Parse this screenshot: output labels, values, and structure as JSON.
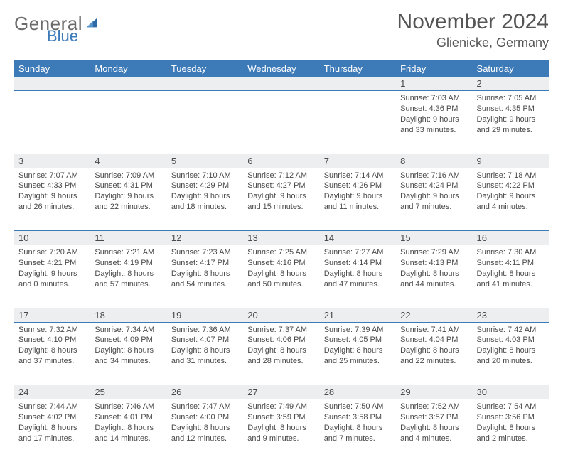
{
  "brand": {
    "word1": "General",
    "word2": "Blue",
    "word1_color": "#6b6b6b",
    "word2_color": "#3d7ab8",
    "sail_color": "#2f6aa8"
  },
  "header": {
    "title": "November 2024",
    "location": "Glienicke, Germany"
  },
  "style": {
    "header_bg": "#3d7ab8",
    "header_text": "#ffffff",
    "daynum_bg": "#eceeef",
    "row_divider": "#3d7ab8",
    "body_text": "#4a4a4a",
    "title_fontsize": 30,
    "location_fontsize": 18,
    "daytext_fontsize": 11
  },
  "weekdays": [
    "Sunday",
    "Monday",
    "Tuesday",
    "Wednesday",
    "Thursday",
    "Friday",
    "Saturday"
  ],
  "weeks": [
    [
      null,
      null,
      null,
      null,
      null,
      {
        "n": "1",
        "sunrise": "Sunrise: 7:03 AM",
        "sunset": "Sunset: 4:36 PM",
        "day1": "Daylight: 9 hours",
        "day2": "and 33 minutes."
      },
      {
        "n": "2",
        "sunrise": "Sunrise: 7:05 AM",
        "sunset": "Sunset: 4:35 PM",
        "day1": "Daylight: 9 hours",
        "day2": "and 29 minutes."
      }
    ],
    [
      {
        "n": "3",
        "sunrise": "Sunrise: 7:07 AM",
        "sunset": "Sunset: 4:33 PM",
        "day1": "Daylight: 9 hours",
        "day2": "and 26 minutes."
      },
      {
        "n": "4",
        "sunrise": "Sunrise: 7:09 AM",
        "sunset": "Sunset: 4:31 PM",
        "day1": "Daylight: 9 hours",
        "day2": "and 22 minutes."
      },
      {
        "n": "5",
        "sunrise": "Sunrise: 7:10 AM",
        "sunset": "Sunset: 4:29 PM",
        "day1": "Daylight: 9 hours",
        "day2": "and 18 minutes."
      },
      {
        "n": "6",
        "sunrise": "Sunrise: 7:12 AM",
        "sunset": "Sunset: 4:27 PM",
        "day1": "Daylight: 9 hours",
        "day2": "and 15 minutes."
      },
      {
        "n": "7",
        "sunrise": "Sunrise: 7:14 AM",
        "sunset": "Sunset: 4:26 PM",
        "day1": "Daylight: 9 hours",
        "day2": "and 11 minutes."
      },
      {
        "n": "8",
        "sunrise": "Sunrise: 7:16 AM",
        "sunset": "Sunset: 4:24 PM",
        "day1": "Daylight: 9 hours",
        "day2": "and 7 minutes."
      },
      {
        "n": "9",
        "sunrise": "Sunrise: 7:18 AM",
        "sunset": "Sunset: 4:22 PM",
        "day1": "Daylight: 9 hours",
        "day2": "and 4 minutes."
      }
    ],
    [
      {
        "n": "10",
        "sunrise": "Sunrise: 7:20 AM",
        "sunset": "Sunset: 4:21 PM",
        "day1": "Daylight: 9 hours",
        "day2": "and 0 minutes."
      },
      {
        "n": "11",
        "sunrise": "Sunrise: 7:21 AM",
        "sunset": "Sunset: 4:19 PM",
        "day1": "Daylight: 8 hours",
        "day2": "and 57 minutes."
      },
      {
        "n": "12",
        "sunrise": "Sunrise: 7:23 AM",
        "sunset": "Sunset: 4:17 PM",
        "day1": "Daylight: 8 hours",
        "day2": "and 54 minutes."
      },
      {
        "n": "13",
        "sunrise": "Sunrise: 7:25 AM",
        "sunset": "Sunset: 4:16 PM",
        "day1": "Daylight: 8 hours",
        "day2": "and 50 minutes."
      },
      {
        "n": "14",
        "sunrise": "Sunrise: 7:27 AM",
        "sunset": "Sunset: 4:14 PM",
        "day1": "Daylight: 8 hours",
        "day2": "and 47 minutes."
      },
      {
        "n": "15",
        "sunrise": "Sunrise: 7:29 AM",
        "sunset": "Sunset: 4:13 PM",
        "day1": "Daylight: 8 hours",
        "day2": "and 44 minutes."
      },
      {
        "n": "16",
        "sunrise": "Sunrise: 7:30 AM",
        "sunset": "Sunset: 4:11 PM",
        "day1": "Daylight: 8 hours",
        "day2": "and 41 minutes."
      }
    ],
    [
      {
        "n": "17",
        "sunrise": "Sunrise: 7:32 AM",
        "sunset": "Sunset: 4:10 PM",
        "day1": "Daylight: 8 hours",
        "day2": "and 37 minutes."
      },
      {
        "n": "18",
        "sunrise": "Sunrise: 7:34 AM",
        "sunset": "Sunset: 4:09 PM",
        "day1": "Daylight: 8 hours",
        "day2": "and 34 minutes."
      },
      {
        "n": "19",
        "sunrise": "Sunrise: 7:36 AM",
        "sunset": "Sunset: 4:07 PM",
        "day1": "Daylight: 8 hours",
        "day2": "and 31 minutes."
      },
      {
        "n": "20",
        "sunrise": "Sunrise: 7:37 AM",
        "sunset": "Sunset: 4:06 PM",
        "day1": "Daylight: 8 hours",
        "day2": "and 28 minutes."
      },
      {
        "n": "21",
        "sunrise": "Sunrise: 7:39 AM",
        "sunset": "Sunset: 4:05 PM",
        "day1": "Daylight: 8 hours",
        "day2": "and 25 minutes."
      },
      {
        "n": "22",
        "sunrise": "Sunrise: 7:41 AM",
        "sunset": "Sunset: 4:04 PM",
        "day1": "Daylight: 8 hours",
        "day2": "and 22 minutes."
      },
      {
        "n": "23",
        "sunrise": "Sunrise: 7:42 AM",
        "sunset": "Sunset: 4:03 PM",
        "day1": "Daylight: 8 hours",
        "day2": "and 20 minutes."
      }
    ],
    [
      {
        "n": "24",
        "sunrise": "Sunrise: 7:44 AM",
        "sunset": "Sunset: 4:02 PM",
        "day1": "Daylight: 8 hours",
        "day2": "and 17 minutes."
      },
      {
        "n": "25",
        "sunrise": "Sunrise: 7:46 AM",
        "sunset": "Sunset: 4:01 PM",
        "day1": "Daylight: 8 hours",
        "day2": "and 14 minutes."
      },
      {
        "n": "26",
        "sunrise": "Sunrise: 7:47 AM",
        "sunset": "Sunset: 4:00 PM",
        "day1": "Daylight: 8 hours",
        "day2": "and 12 minutes."
      },
      {
        "n": "27",
        "sunrise": "Sunrise: 7:49 AM",
        "sunset": "Sunset: 3:59 PM",
        "day1": "Daylight: 8 hours",
        "day2": "and 9 minutes."
      },
      {
        "n": "28",
        "sunrise": "Sunrise: 7:50 AM",
        "sunset": "Sunset: 3:58 PM",
        "day1": "Daylight: 8 hours",
        "day2": "and 7 minutes."
      },
      {
        "n": "29",
        "sunrise": "Sunrise: 7:52 AM",
        "sunset": "Sunset: 3:57 PM",
        "day1": "Daylight: 8 hours",
        "day2": "and 4 minutes."
      },
      {
        "n": "30",
        "sunrise": "Sunrise: 7:54 AM",
        "sunset": "Sunset: 3:56 PM",
        "day1": "Daylight: 8 hours",
        "day2": "and 2 minutes."
      }
    ]
  ]
}
